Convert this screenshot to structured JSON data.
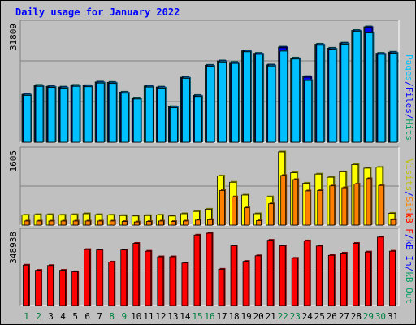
{
  "chart_data": {
    "type": "bar",
    "title": "Daily usage for January 2022",
    "categories": [
      "1",
      "2",
      "3",
      "4",
      "5",
      "6",
      "7",
      "8",
      "9",
      "10",
      "11",
      "12",
      "13",
      "14",
      "15",
      "16",
      "17",
      "18",
      "19",
      "20",
      "21",
      "22",
      "23",
      "24",
      "25",
      "26",
      "27",
      "28",
      "29",
      "30",
      "31"
    ],
    "weekend_days": [
      "1",
      "2",
      "8",
      "9",
      "15",
      "16",
      "22",
      "23",
      "29",
      "30"
    ],
    "panels": [
      {
        "id": "hits",
        "scale_label": "31809",
        "ylim": [
          0,
          31809
        ],
        "legend": [
          {
            "label": "Pages",
            "color": "#00c0ff"
          },
          {
            "label": "/",
            "color": "#0000ff"
          },
          {
            "label": "Files",
            "color": "#0000ff"
          },
          {
            "label": "/",
            "color": "#0000ff"
          },
          {
            "label": "Hits",
            "color": "#00a060"
          }
        ],
        "series": [
          {
            "name": "Hits",
            "color": "#00a080",
            "values": [
              13200,
              15700,
              15400,
              15200,
              15700,
              15600,
              16600,
              16500,
              13800,
              12200,
              15500,
              15200,
              9800,
              17900,
              12900,
              21200,
              22400,
              22000,
              25200,
              24500,
              21300,
              26200,
              23200,
              18100,
              27000,
              25900,
              27300,
              30800,
              31809,
              24500,
              24800
            ]
          },
          {
            "name": "Files",
            "color": "#0000ff",
            "values": [
              13000,
              15500,
              15200,
              15000,
              15500,
              15400,
              16400,
              16300,
              13600,
              12000,
              15300,
              15000,
              9600,
              17700,
              12700,
              21000,
              22200,
              21800,
              25000,
              24300,
              21100,
              26000,
              23000,
              17900,
              26800,
              25700,
              27100,
              30600,
              31600,
              24300,
              24600
            ]
          },
          {
            "name": "Pages",
            "color": "#00c0ff",
            "values": [
              12900,
              15400,
              15100,
              14900,
              15400,
              15300,
              16300,
              16200,
              13500,
              11900,
              15200,
              14900,
              9500,
              17600,
              12600,
              20900,
              22100,
              21700,
              24900,
              24200,
              21000,
              25100,
              22900,
              17000,
              26700,
              25600,
              27000,
              30500,
              30100,
              24200,
              24500
            ]
          }
        ]
      },
      {
        "id": "visits",
        "scale_label": "1605",
        "ylim": [
          0,
          1605
        ],
        "legend": [
          {
            "label": "Visits",
            "color": "#c0c000"
          },
          {
            "label": "/",
            "color": "#0000ff"
          },
          {
            "label": "Sites",
            "color": "#ff8000"
          }
        ],
        "series": [
          {
            "name": "Visits",
            "color": "#ffff00",
            "values": [
              220,
              230,
              230,
              220,
              230,
              250,
              230,
              220,
              210,
              200,
              210,
              220,
              200,
              250,
              300,
              350,
              1080,
              940,
              660,
              250,
              620,
              1605,
              1150,
              920,
              1120,
              1050,
              1170,
              1330,
              1250,
              1270,
              260
            ]
          },
          {
            "name": "Sites",
            "color": "#ff8000",
            "values": [
              90,
              90,
              90,
              90,
              90,
              90,
              90,
              90,
              80,
              70,
              80,
              90,
              80,
              90,
              110,
              120,
              760,
              620,
              380,
              100,
              470,
              1090,
              1000,
              750,
              760,
              860,
              820,
              900,
              1020,
              870,
              120
            ]
          }
        ]
      },
      {
        "id": "kbf",
        "scale_label": "348938",
        "ylim": [
          0,
          348938
        ],
        "legend": [
          {
            "label": "kB F",
            "color": "#ff0000"
          },
          {
            "label": "/",
            "color": "#0000ff"
          },
          {
            "label": "kB In",
            "color": "#0000ff"
          },
          {
            "label": "/",
            "color": "#0000ff"
          },
          {
            "label": "kB Out",
            "color": "#00a060"
          }
        ],
        "series": [
          {
            "name": "kB F",
            "color": "#ff0000",
            "values": [
              195000,
              170000,
              193000,
              170000,
              163000,
              270000,
              268000,
              210000,
              268000,
              300000,
              262000,
              235000,
              235000,
              205000,
              340000,
              348938,
              175000,
              288000,
              213000,
              240000,
              315000,
              288000,
              228000,
              312000,
              287000,
              242000,
              253000,
              300000,
              258000,
              330000,
              262000
            ]
          }
        ]
      }
    ]
  }
}
